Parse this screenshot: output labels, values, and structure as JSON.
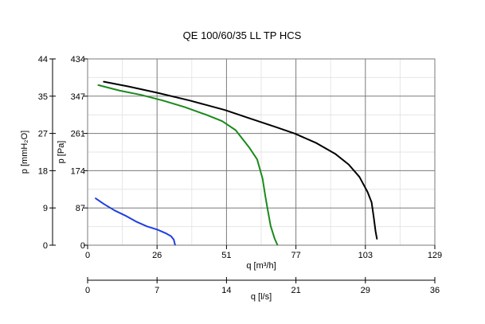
{
  "chart_data": {
    "type": "line",
    "title": "QE 100/60/35 LL TP HCS",
    "xlabel": "q [m³/h]",
    "xlabel2": "q [l/s]",
    "ylabel": "p [Pa]",
    "ylabel2": "p [mmH₂O]",
    "xlim": [
      0,
      129
    ],
    "ylim": [
      0,
      434
    ],
    "x_ticks": [
      0,
      26,
      51,
      77,
      103,
      129
    ],
    "x2_ticks": [
      0,
      7,
      14,
      21,
      29,
      36
    ],
    "y_ticks": [
      0,
      87,
      174,
      261,
      347,
      434
    ],
    "y2_ticks": [
      0,
      9,
      18,
      27,
      35,
      44
    ],
    "grid": true,
    "series": [
      {
        "color": "#000000",
        "points": [
          [
            6,
            381
          ],
          [
            15,
            370
          ],
          [
            26,
            355
          ],
          [
            38,
            337
          ],
          [
            51,
            315
          ],
          [
            60,
            296
          ],
          [
            70,
            275
          ],
          [
            77,
            260
          ],
          [
            85,
            238
          ],
          [
            92,
            213
          ],
          [
            97,
            188
          ],
          [
            101,
            159
          ],
          [
            104,
            124
          ],
          [
            105.5,
            100
          ],
          [
            106.3,
            65
          ],
          [
            107,
            32
          ],
          [
            107.5,
            15
          ]
        ]
      },
      {
        "color": "#1a8a1a",
        "points": [
          [
            4,
            373
          ],
          [
            12,
            360
          ],
          [
            20,
            350
          ],
          [
            28,
            337
          ],
          [
            36,
            322
          ],
          [
            44,
            304
          ],
          [
            50,
            289
          ],
          [
            55,
            268
          ],
          [
            60,
            228
          ],
          [
            63,
            200
          ],
          [
            65,
            155
          ],
          [
            66,
            115
          ],
          [
            67,
            80
          ],
          [
            68,
            45
          ],
          [
            69.5,
            15
          ],
          [
            70.5,
            1
          ]
        ]
      },
      {
        "color": "#1f3fe0",
        "points": [
          [
            3,
            109
          ],
          [
            6,
            96
          ],
          [
            10,
            81
          ],
          [
            14,
            69
          ],
          [
            18,
            55
          ],
          [
            22,
            44
          ],
          [
            26,
            36
          ],
          [
            29,
            28
          ],
          [
            31,
            21
          ],
          [
            32,
            13
          ],
          [
            32.5,
            1
          ]
        ]
      }
    ]
  }
}
